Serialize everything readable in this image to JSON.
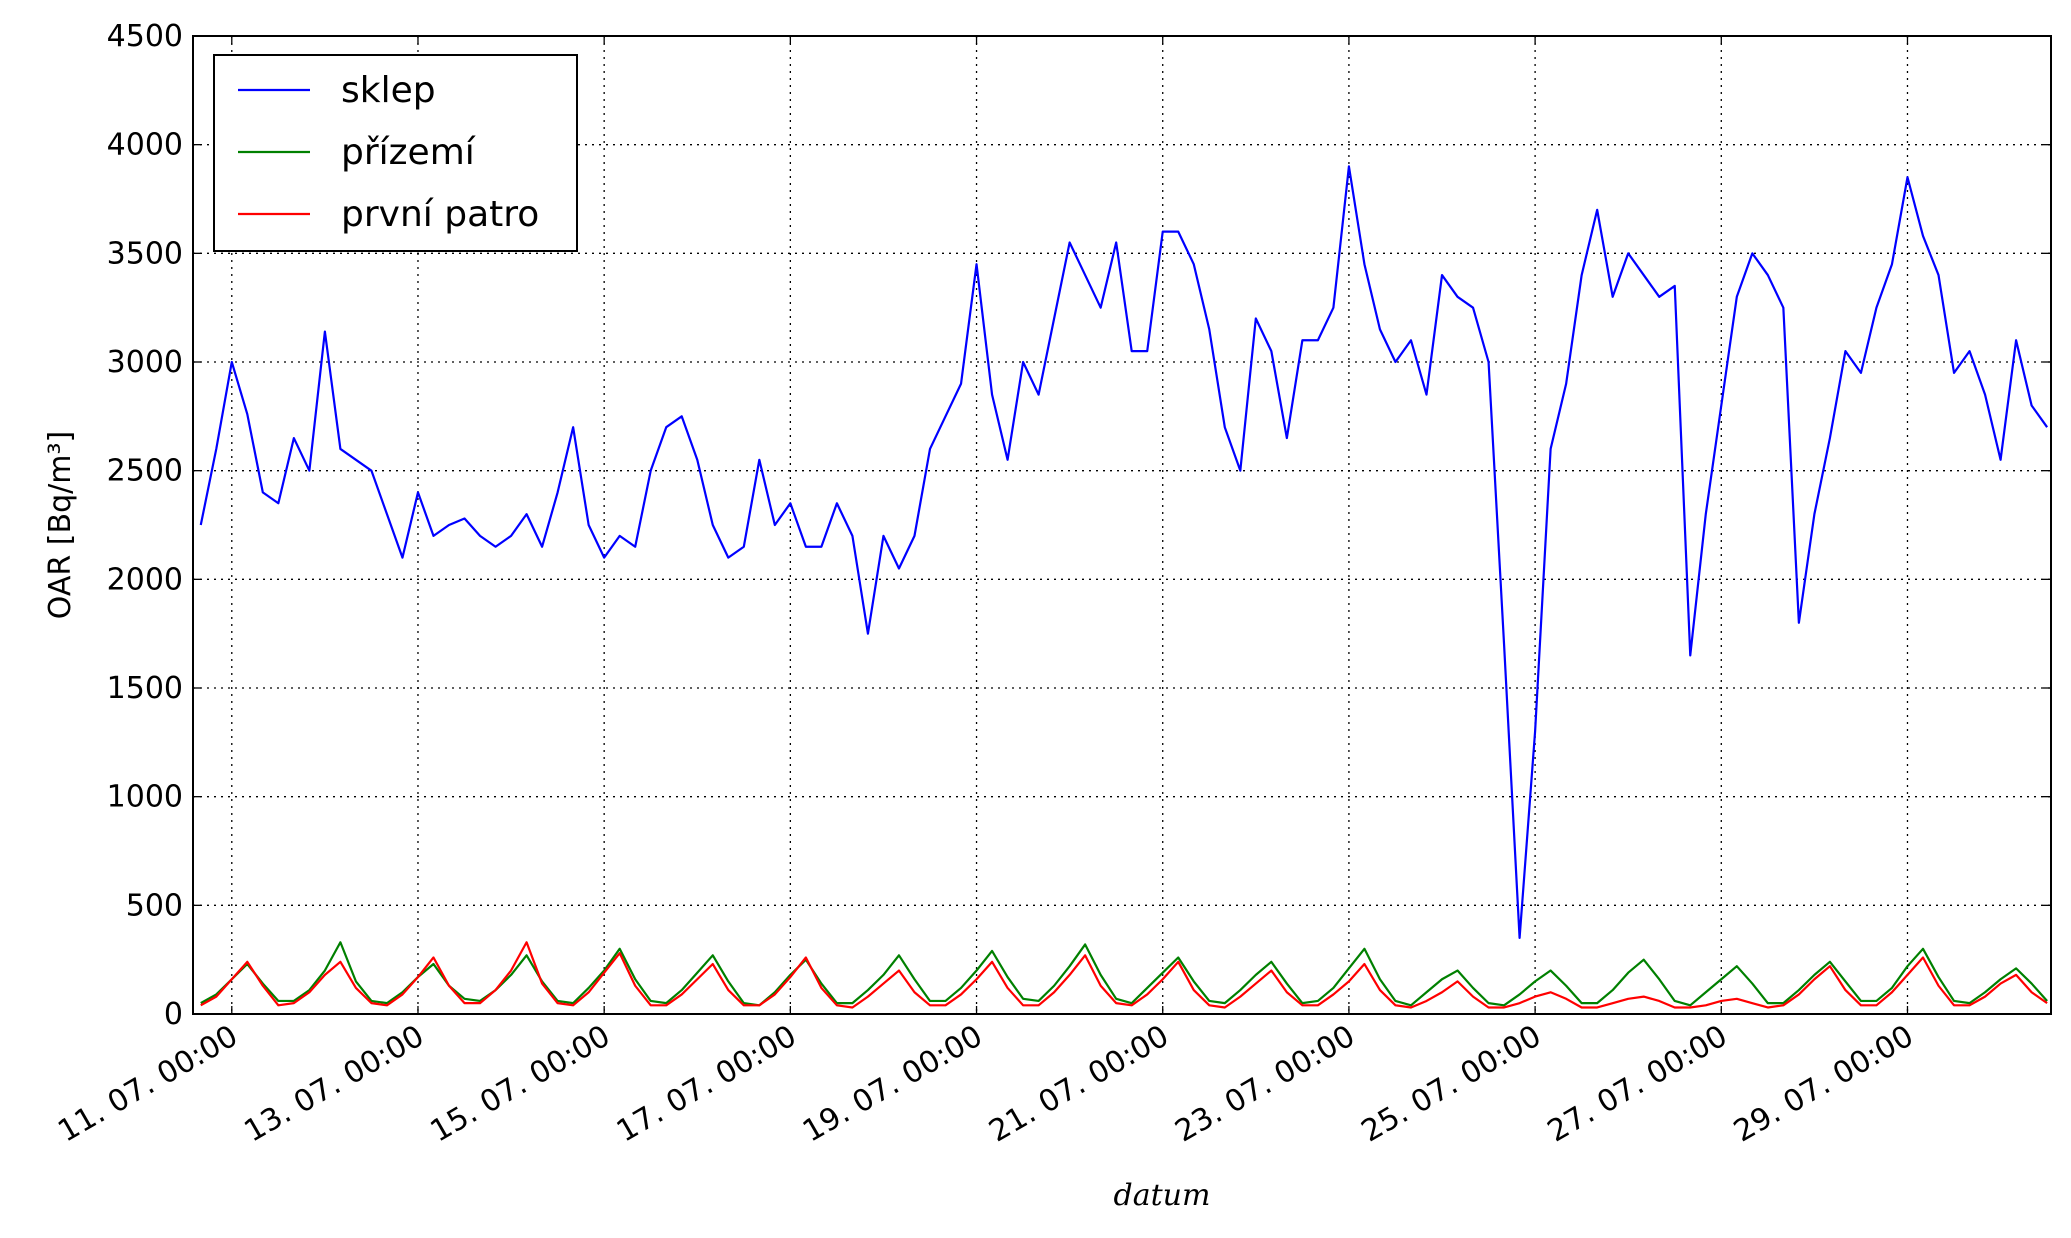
{
  "chart_data": {
    "type": "line",
    "x_label": "datum",
    "y_label": "OAR [Bq/m³]",
    "xlim": [
      -10,
      469
    ],
    "ylim": [
      0,
      4500
    ],
    "xticks": [
      {
        "value": 0,
        "label": "11. 07. 00:00"
      },
      {
        "value": 48,
        "label": "13. 07. 00:00"
      },
      {
        "value": 96,
        "label": "15. 07. 00:00"
      },
      {
        "value": 144,
        "label": "17. 07. 00:00"
      },
      {
        "value": 192,
        "label": "19. 07. 00:00"
      },
      {
        "value": 240,
        "label": "21. 07. 00:00"
      },
      {
        "value": 288,
        "label": "23. 07. 00:00"
      },
      {
        "value": 336,
        "label": "25. 07. 00:00"
      },
      {
        "value": 384,
        "label": "27. 07. 00:00"
      },
      {
        "value": 432,
        "label": "29. 07. 00:00"
      }
    ],
    "yticks": [
      0,
      500,
      1000,
      1500,
      2000,
      2500,
      3000,
      3500,
      4000,
      4500
    ],
    "grid": true,
    "legend_loc": "upper left",
    "x": [
      -8,
      -4,
      0,
      4,
      8,
      12,
      16,
      20,
      24,
      28,
      32,
      36,
      40,
      44,
      48,
      52,
      56,
      60,
      64,
      68,
      72,
      76,
      80,
      84,
      88,
      92,
      96,
      100,
      104,
      108,
      112,
      116,
      120,
      124,
      128,
      132,
      136,
      140,
      144,
      148,
      152,
      156,
      160,
      164,
      168,
      172,
      176,
      180,
      184,
      188,
      192,
      196,
      200,
      204,
      208,
      212,
      216,
      220,
      224,
      228,
      232,
      236,
      240,
      244,
      248,
      252,
      256,
      260,
      264,
      268,
      272,
      276,
      280,
      284,
      288,
      292,
      296,
      300,
      304,
      308,
      312,
      316,
      320,
      324,
      328,
      332,
      336,
      340,
      344,
      348,
      352,
      356,
      360,
      364,
      368,
      372,
      376,
      380,
      384,
      388,
      392,
      396,
      400,
      404,
      408,
      412,
      416,
      420,
      424,
      428,
      432,
      436,
      440,
      444,
      448,
      452,
      456,
      460,
      464,
      468
    ],
    "series": [
      {
        "name": "sklep",
        "color": "#0000ff",
        "values": [
          2250,
          2600,
          3000,
          2760,
          2400,
          2350,
          2650,
          2500,
          3140,
          2600,
          2550,
          2500,
          2300,
          2100,
          2400,
          2200,
          2250,
          2280,
          2200,
          2150,
          2200,
          2300,
          2150,
          2400,
          2700,
          2250,
          2100,
          2200,
          2150,
          2500,
          2700,
          2750,
          2550,
          2250,
          2100,
          2150,
          2550,
          2250,
          2350,
          2150,
          2150,
          2350,
          2200,
          1750,
          2200,
          2050,
          2200,
          2600,
          2750,
          2900,
          3450,
          2850,
          2550,
          3000,
          2850,
          3200,
          3550,
          3400,
          3250,
          3550,
          3050,
          3050,
          3600,
          3600,
          3450,
          3150,
          2700,
          2500,
          3200,
          3050,
          2650,
          3100,
          3100,
          3250,
          3900,
          3450,
          3150,
          3000,
          3100,
          2850,
          3400,
          3300,
          3250,
          3000,
          1700,
          350,
          1300,
          2600,
          2900,
          3400,
          3700,
          3300,
          3500,
          3400,
          3300,
          3350,
          1650,
          2300,
          2800,
          3300,
          3500,
          3400,
          3250,
          1800,
          2300,
          2650,
          3050,
          2950,
          3250,
          3450,
          3850,
          3580,
          3400,
          2950,
          3050,
          2850,
          2550,
          3100,
          2800,
          2700
        ]
      },
      {
        "name": "přízemí",
        "color": "#008000",
        "values": [
          50,
          90,
          160,
          230,
          140,
          60,
          60,
          110,
          200,
          330,
          150,
          60,
          50,
          100,
          170,
          230,
          130,
          70,
          60,
          110,
          180,
          270,
          150,
          60,
          50,
          120,
          200,
          300,
          160,
          60,
          50,
          110,
          190,
          270,
          150,
          50,
          40,
          100,
          180,
          250,
          140,
          50,
          50,
          110,
          180,
          270,
          160,
          60,
          60,
          120,
          200,
          290,
          170,
          70,
          60,
          130,
          220,
          320,
          180,
          70,
          50,
          120,
          190,
          260,
          150,
          60,
          50,
          110,
          180,
          240,
          140,
          50,
          60,
          120,
          210,
          300,
          160,
          60,
          40,
          100,
          160,
          200,
          120,
          50,
          40,
          90,
          150,
          200,
          130,
          50,
          50,
          110,
          190,
          250,
          160,
          60,
          40,
          100,
          160,
          220,
          140,
          50,
          50,
          110,
          180,
          240,
          150,
          60,
          60,
          120,
          220,
          300,
          170,
          60,
          50,
          100,
          160,
          210,
          140,
          60
        ]
      },
      {
        "name": "první patro",
        "color": "#ff0000",
        "values": [
          40,
          80,
          160,
          240,
          130,
          40,
          50,
          100,
          180,
          240,
          120,
          50,
          40,
          90,
          170,
          260,
          130,
          50,
          50,
          110,
          200,
          330,
          140,
          50,
          40,
          100,
          190,
          280,
          130,
          40,
          40,
          90,
          160,
          230,
          110,
          40,
          40,
          90,
          170,
          260,
          120,
          40,
          30,
          80,
          140,
          200,
          100,
          40,
          40,
          90,
          160,
          240,
          120,
          40,
          40,
          100,
          180,
          270,
          130,
          50,
          40,
          90,
          160,
          240,
          110,
          40,
          30,
          80,
          140,
          200,
          100,
          40,
          40,
          90,
          150,
          230,
          110,
          40,
          30,
          60,
          100,
          150,
          80,
          30,
          30,
          50,
          80,
          100,
          70,
          30,
          30,
          50,
          70,
          80,
          60,
          30,
          30,
          40,
          60,
          70,
          50,
          30,
          40,
          90,
          160,
          220,
          110,
          40,
          40,
          100,
          180,
          260,
          130,
          40,
          40,
          80,
          140,
          180,
          100,
          50
        ]
      }
    ]
  }
}
